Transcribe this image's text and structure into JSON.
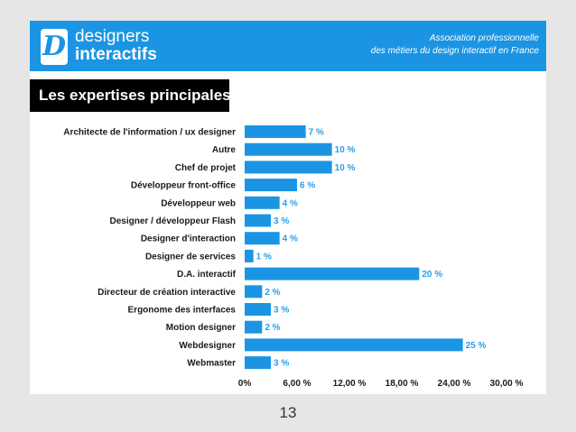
{
  "header": {
    "brand_line1": "designers",
    "brand_line2": "interactifs",
    "logo_letter": "D",
    "assoc_line1": "Association professionnelle",
    "assoc_line2": "des métiers du design interactif en France",
    "accent_color": "#1b95e3"
  },
  "section_title": "Les expertises principales",
  "page_number": "13",
  "chart_data": {
    "type": "bar",
    "orientation": "horizontal",
    "title": "Les expertises principales",
    "categories": [
      "Architecte de l'information / ux designer",
      "Autre",
      "Chef de projet",
      "Développeur front-office",
      "Développeur web",
      "Designer / développeur Flash",
      "Designer d'interaction",
      "Designer de services",
      "D.A. interactif",
      "Directeur de création interactive",
      "Ergonome des interfaces",
      "Motion designer",
      "Webdesigner",
      "Webmaster"
    ],
    "values": [
      7,
      10,
      10,
      6,
      4,
      3,
      4,
      1,
      20,
      2,
      3,
      2,
      25,
      3
    ],
    "value_labels": [
      "7 %",
      "10 %",
      "10 %",
      "6 %",
      "4 %",
      "3 %",
      "4 %",
      "1 %",
      "20 %",
      "2 %",
      "3 %",
      "2 %",
      "25 %",
      "3 %"
    ],
    "xlim": [
      0,
      30
    ],
    "x_ticks": [
      0,
      6,
      12,
      18,
      24,
      30
    ],
    "x_tick_labels": [
      "0%",
      "6,00 %",
      "12,00 %",
      "18,00 %",
      "24,00 %",
      "30,00 %"
    ],
    "bar_color": "#1b95e3",
    "label_color": "#2a9de6",
    "grid": false
  }
}
